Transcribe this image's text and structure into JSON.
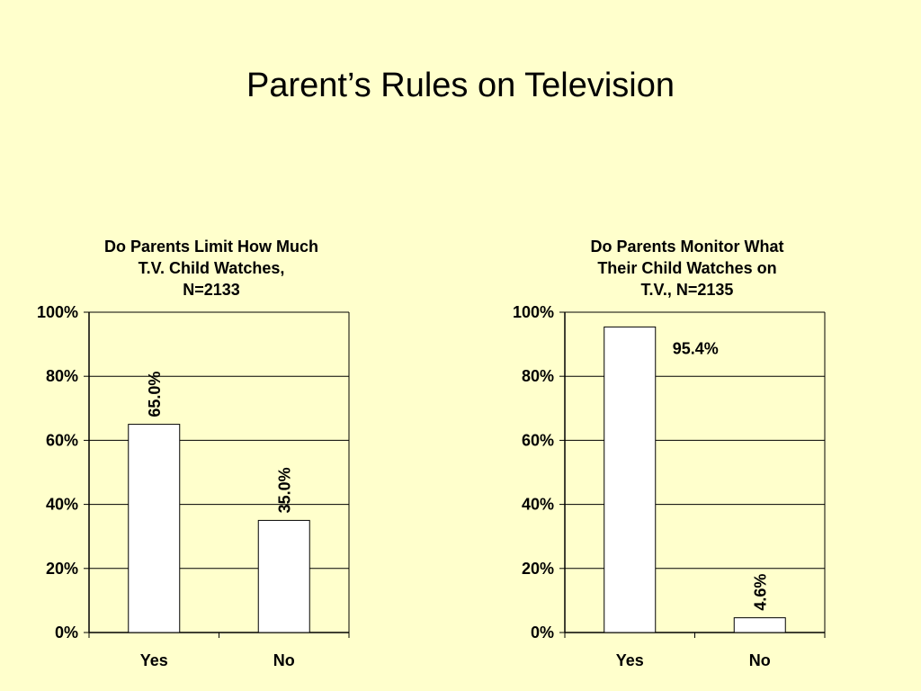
{
  "slide": {
    "title": "Parent’s Rules on Television"
  },
  "colors": {
    "background": "#FFFFCC",
    "bar_fill": "#FFFFFF",
    "bar_stroke": "#000000",
    "gridline": "#000000",
    "text": "#000000"
  },
  "chart_data": [
    {
      "type": "bar",
      "title_lines": [
        "Do Parents Limit How Much",
        "T.V. Child Watches,",
        "N=2133"
      ],
      "categories": [
        "Yes",
        "No"
      ],
      "values": [
        65.0,
        35.0
      ],
      "data_labels": [
        "65.0%",
        "35.0%"
      ],
      "data_label_rotation": [
        -90,
        -90
      ],
      "ylim": [
        0,
        100
      ],
      "yticks": [
        0,
        20,
        40,
        60,
        80,
        100
      ],
      "ytick_labels": [
        "0%",
        "20%",
        "40%",
        "60%",
        "80%",
        "100%"
      ],
      "grid": true,
      "legend": "none",
      "xlabel": "",
      "ylabel": ""
    },
    {
      "type": "bar",
      "title_lines": [
        "Do Parents Monitor What",
        "Their Child Watches on",
        "T.V., N=2135"
      ],
      "categories": [
        "Yes",
        "No"
      ],
      "values": [
        95.4,
        4.6
      ],
      "data_labels": [
        "95.4%",
        "4.6%"
      ],
      "data_label_rotation": [
        0,
        -90
      ],
      "ylim": [
        0,
        100
      ],
      "yticks": [
        0,
        20,
        40,
        60,
        80,
        100
      ],
      "ytick_labels": [
        "0%",
        "20%",
        "40%",
        "60%",
        "80%",
        "100%"
      ],
      "grid": true,
      "legend": "none",
      "xlabel": "",
      "ylabel": ""
    }
  ]
}
